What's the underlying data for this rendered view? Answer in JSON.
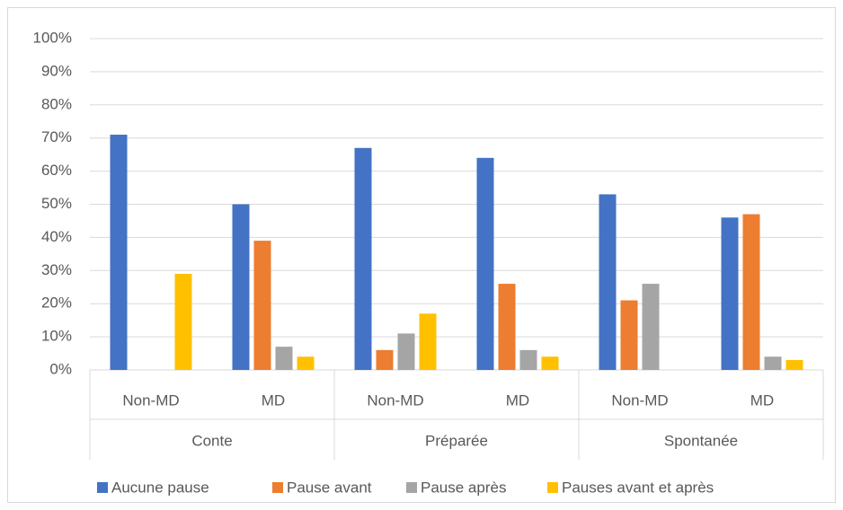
{
  "chart_data": {
    "type": "bar",
    "categories": [
      "Non-MD",
      "MD",
      "Non-MD",
      "MD",
      "Non-MD",
      "MD"
    ],
    "groups": [
      "Conte",
      "Préparée",
      "Spontanée"
    ],
    "series": [
      {
        "name": "Aucune pause",
        "color": "#4472c4",
        "values": [
          71,
          50,
          67,
          64,
          53,
          46
        ]
      },
      {
        "name": "Pause avant",
        "color": "#ed7d31",
        "values": [
          0,
          39,
          6,
          26,
          21,
          47
        ]
      },
      {
        "name": "Pause après",
        "color": "#a5a5a5",
        "values": [
          0,
          7,
          11,
          6,
          26,
          4
        ]
      },
      {
        "name": "Pauses avant et après",
        "color": "#ffc000",
        "values": [
          29,
          4,
          17,
          4,
          0,
          3
        ]
      }
    ],
    "ylim": [
      0,
      100
    ],
    "yticks": [
      {
        "value": 0,
        "label": "0%"
      },
      {
        "value": 10,
        "label": "10%"
      },
      {
        "value": 20,
        "label": "20%"
      },
      {
        "value": 30,
        "label": "30%"
      },
      {
        "value": 40,
        "label": "40%"
      },
      {
        "value": 50,
        "label": "50%"
      },
      {
        "value": 60,
        "label": "60%"
      },
      {
        "value": 70,
        "label": "70%"
      },
      {
        "value": 80,
        "label": "80%"
      },
      {
        "value": 90,
        "label": "90%"
      },
      {
        "value": 100,
        "label": "100%"
      }
    ],
    "grid": true,
    "legend": "bottom"
  }
}
